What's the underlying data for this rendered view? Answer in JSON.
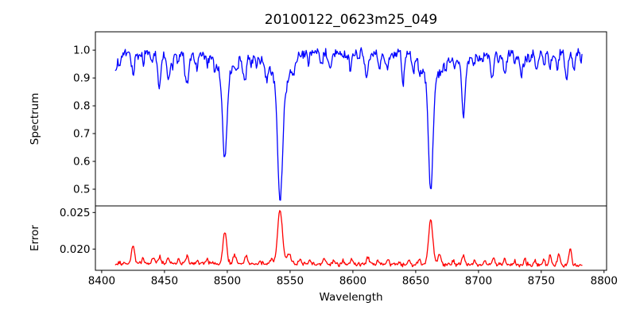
{
  "chart_data": {
    "type": "line",
    "title": "20100122_0623m25_049",
    "xlabel": "Wavelength",
    "grid": false,
    "legend": "none",
    "background": "#ffffff",
    "axis_color": "#000000",
    "xlim": [
      8395,
      8802
    ],
    "xticks": [
      {
        "v": 8400,
        "label": "8400"
      },
      {
        "v": 8450,
        "label": "8450"
      },
      {
        "v": 8500,
        "label": "8500"
      },
      {
        "v": 8550,
        "label": "8550"
      },
      {
        "v": 8600,
        "label": "8600"
      },
      {
        "v": 8650,
        "label": "8650"
      },
      {
        "v": 8700,
        "label": "8700"
      },
      {
        "v": 8750,
        "label": "8750"
      },
      {
        "v": 8800,
        "label": "8800"
      }
    ],
    "lambda_range": [
      8411,
      8783
    ],
    "sample_step": 0.6,
    "panels": [
      {
        "ylabel": "Spectrum",
        "color": "#0000ff",
        "ylim": [
          0.44,
          1.066
        ],
        "yticks": [
          {
            "v": 1.0,
            "label": "1.0"
          },
          {
            "v": 0.9,
            "label": "0.9"
          },
          {
            "v": 0.8,
            "label": "0.8"
          },
          {
            "v": 0.7,
            "label": "0.7"
          },
          {
            "v": 0.6,
            "label": "0.6"
          },
          {
            "v": 0.5,
            "label": "0.5"
          }
        ],
        "model": {
          "kind": "absorption_spectrum",
          "continuum": 0.99,
          "noise_sigma": 0.008,
          "seed": 13,
          "main_lines_note": "Ca II triplet 8498/8542/8662 plus Fe 8688; [center, depth, sigma]",
          "absorption_lines": [
            [
              8410,
              0.06,
              1.5
            ],
            [
              8414,
              0.045,
              1.5
            ],
            [
              8425,
              0.075,
              1.2
            ],
            [
              8433,
              0.035,
              0.9
            ],
            [
              8440,
              0.03,
              0.9
            ],
            [
              8446,
              0.105,
              1.3
            ],
            [
              8453,
              0.075,
              1.0
            ],
            [
              8461,
              0.035,
              0.9
            ],
            [
              8468,
              0.11,
              1.4
            ],
            [
              8476,
              0.03,
              0.9
            ],
            [
              8484,
              0.035,
              0.9
            ],
            [
              8490,
              0.03,
              0.8
            ],
            [
              8498,
              0.29,
              1.6
            ],
            [
              8498,
              0.095,
              5.5
            ],
            [
              8507,
              0.04,
              1.0
            ],
            [
              8514,
              0.1,
              1.4
            ],
            [
              8523,
              0.04,
              1.0
            ],
            [
              8531,
              0.03,
              0.9
            ],
            [
              8542,
              0.415,
              1.8
            ],
            [
              8542,
              0.115,
              7.0
            ],
            [
              8553,
              0.045,
              0.9
            ],
            [
              8565,
              0.03,
              0.9
            ],
            [
              8575,
              0.045,
              1.0
            ],
            [
              8582,
              0.05,
              1.2
            ],
            [
              8590,
              0.03,
              0.9
            ],
            [
              8598,
              0.045,
              1.0
            ],
            [
              8605,
              0.03,
              0.9
            ],
            [
              8611,
              0.085,
              1.3
            ],
            [
              8621,
              0.045,
              1.0
            ],
            [
              8628,
              0.04,
              1.0
            ],
            [
              8640,
              0.115,
              0.9
            ],
            [
              8648,
              0.06,
              1.1
            ],
            [
              8653,
              0.04,
              1.0
            ],
            [
              8662,
              0.395,
              1.7
            ],
            [
              8662,
              0.105,
              6.0
            ],
            [
              8674,
              0.055,
              1.1
            ],
            [
              8681,
              0.03,
              0.9
            ],
            [
              8688,
              0.165,
              1.3
            ],
            [
              8688,
              0.045,
              3.5
            ],
            [
              8696,
              0.04,
              1.0
            ],
            [
              8703,
              0.035,
              0.9
            ],
            [
              8711,
              0.09,
              1.2
            ],
            [
              8716,
              0.04,
              0.9
            ],
            [
              8721,
              0.075,
              1.2
            ],
            [
              8729,
              0.04,
              0.9
            ],
            [
              8734,
              0.065,
              1.1
            ],
            [
              8741,
              0.03,
              0.9
            ],
            [
              8746,
              0.05,
              1.0
            ],
            [
              8752,
              0.045,
              0.9
            ],
            [
              8757,
              0.05,
              1.0
            ],
            [
              8763,
              0.05,
              1.0
            ],
            [
              8770,
              0.1,
              1.1
            ],
            [
              8776,
              0.065,
              1.0
            ]
          ],
          "emission_spikes": [
            [
              8566,
              0.03,
              0.5
            ],
            [
              8590,
              0.04,
              0.5
            ],
            [
              8606,
              0.035,
              0.5
            ]
          ],
          "micro_lines": {
            "count": 40,
            "depth_range": [
              0.008,
              0.04
            ],
            "sigma_range": [
              0.4,
              1.2
            ]
          }
        }
      },
      {
        "ylabel": "Error",
        "color": "#ff0000",
        "ylim": [
          0.0171,
          0.0259
        ],
        "yticks": [
          {
            "v": 0.025,
            "label": "0.025"
          },
          {
            "v": 0.02,
            "label": "0.020"
          }
        ],
        "model": {
          "kind": "error_curve",
          "baseline": [
            0.01808,
            0.01778
          ],
          "noise_sigma": 0.00013,
          "seed": 29,
          "peaks_note": "[center, amplitude, sigma]; peaks coincide with absorption lines",
          "peaks": [
            [
              8425,
              0.0024,
              1.2
            ],
            [
              8433,
              0.0007,
              0.8
            ],
            [
              8441,
              0.0008,
              0.9
            ],
            [
              8446,
              0.0009,
              0.9
            ],
            [
              8453,
              0.0008,
              0.8
            ],
            [
              8461,
              0.0007,
              0.8
            ],
            [
              8468,
              0.0011,
              0.9
            ],
            [
              8476,
              0.0006,
              0.8
            ],
            [
              8484,
              0.0006,
              0.8
            ],
            [
              8498,
              0.0043,
              1.5
            ],
            [
              8506,
              0.0012,
              1.2
            ],
            [
              8515,
              0.0012,
              1.0
            ],
            [
              8526,
              0.0005,
              0.8
            ],
            [
              8535,
              0.0007,
              1.0
            ],
            [
              8542,
              0.0074,
              1.9
            ],
            [
              8549,
              0.0014,
              1.6
            ],
            [
              8558,
              0.0007,
              0.9
            ],
            [
              8566,
              0.0005,
              0.8
            ],
            [
              8577,
              0.0007,
              0.9
            ],
            [
              8585,
              0.0005,
              0.8
            ],
            [
              8592,
              0.0005,
              0.8
            ],
            [
              8599,
              0.0007,
              0.9
            ],
            [
              8612,
              0.0009,
              1.0
            ],
            [
              8620,
              0.0005,
              0.8
            ],
            [
              8628,
              0.0007,
              0.9
            ],
            [
              8637,
              0.0005,
              0.8
            ],
            [
              8645,
              0.0006,
              0.8
            ],
            [
              8653,
              0.0008,
              0.9
            ],
            [
              8662,
              0.0062,
              1.7
            ],
            [
              8669,
              0.0013,
              1.4
            ],
            [
              8680,
              0.0006,
              0.8
            ],
            [
              8688,
              0.0013,
              1.1
            ],
            [
              8697,
              0.0006,
              0.8
            ],
            [
              8705,
              0.0006,
              0.8
            ],
            [
              8712,
              0.001,
              0.9
            ],
            [
              8721,
              0.0009,
              0.9
            ],
            [
              8729,
              0.0006,
              0.8
            ],
            [
              8737,
              0.0009,
              0.9
            ],
            [
              8745,
              0.0006,
              0.8
            ],
            [
              8752,
              0.0008,
              0.9
            ],
            [
              8757,
              0.0015,
              0.9
            ],
            [
              8764,
              0.0016,
              1.0
            ],
            [
              8773,
              0.0024,
              1.0
            ]
          ]
        }
      }
    ]
  }
}
